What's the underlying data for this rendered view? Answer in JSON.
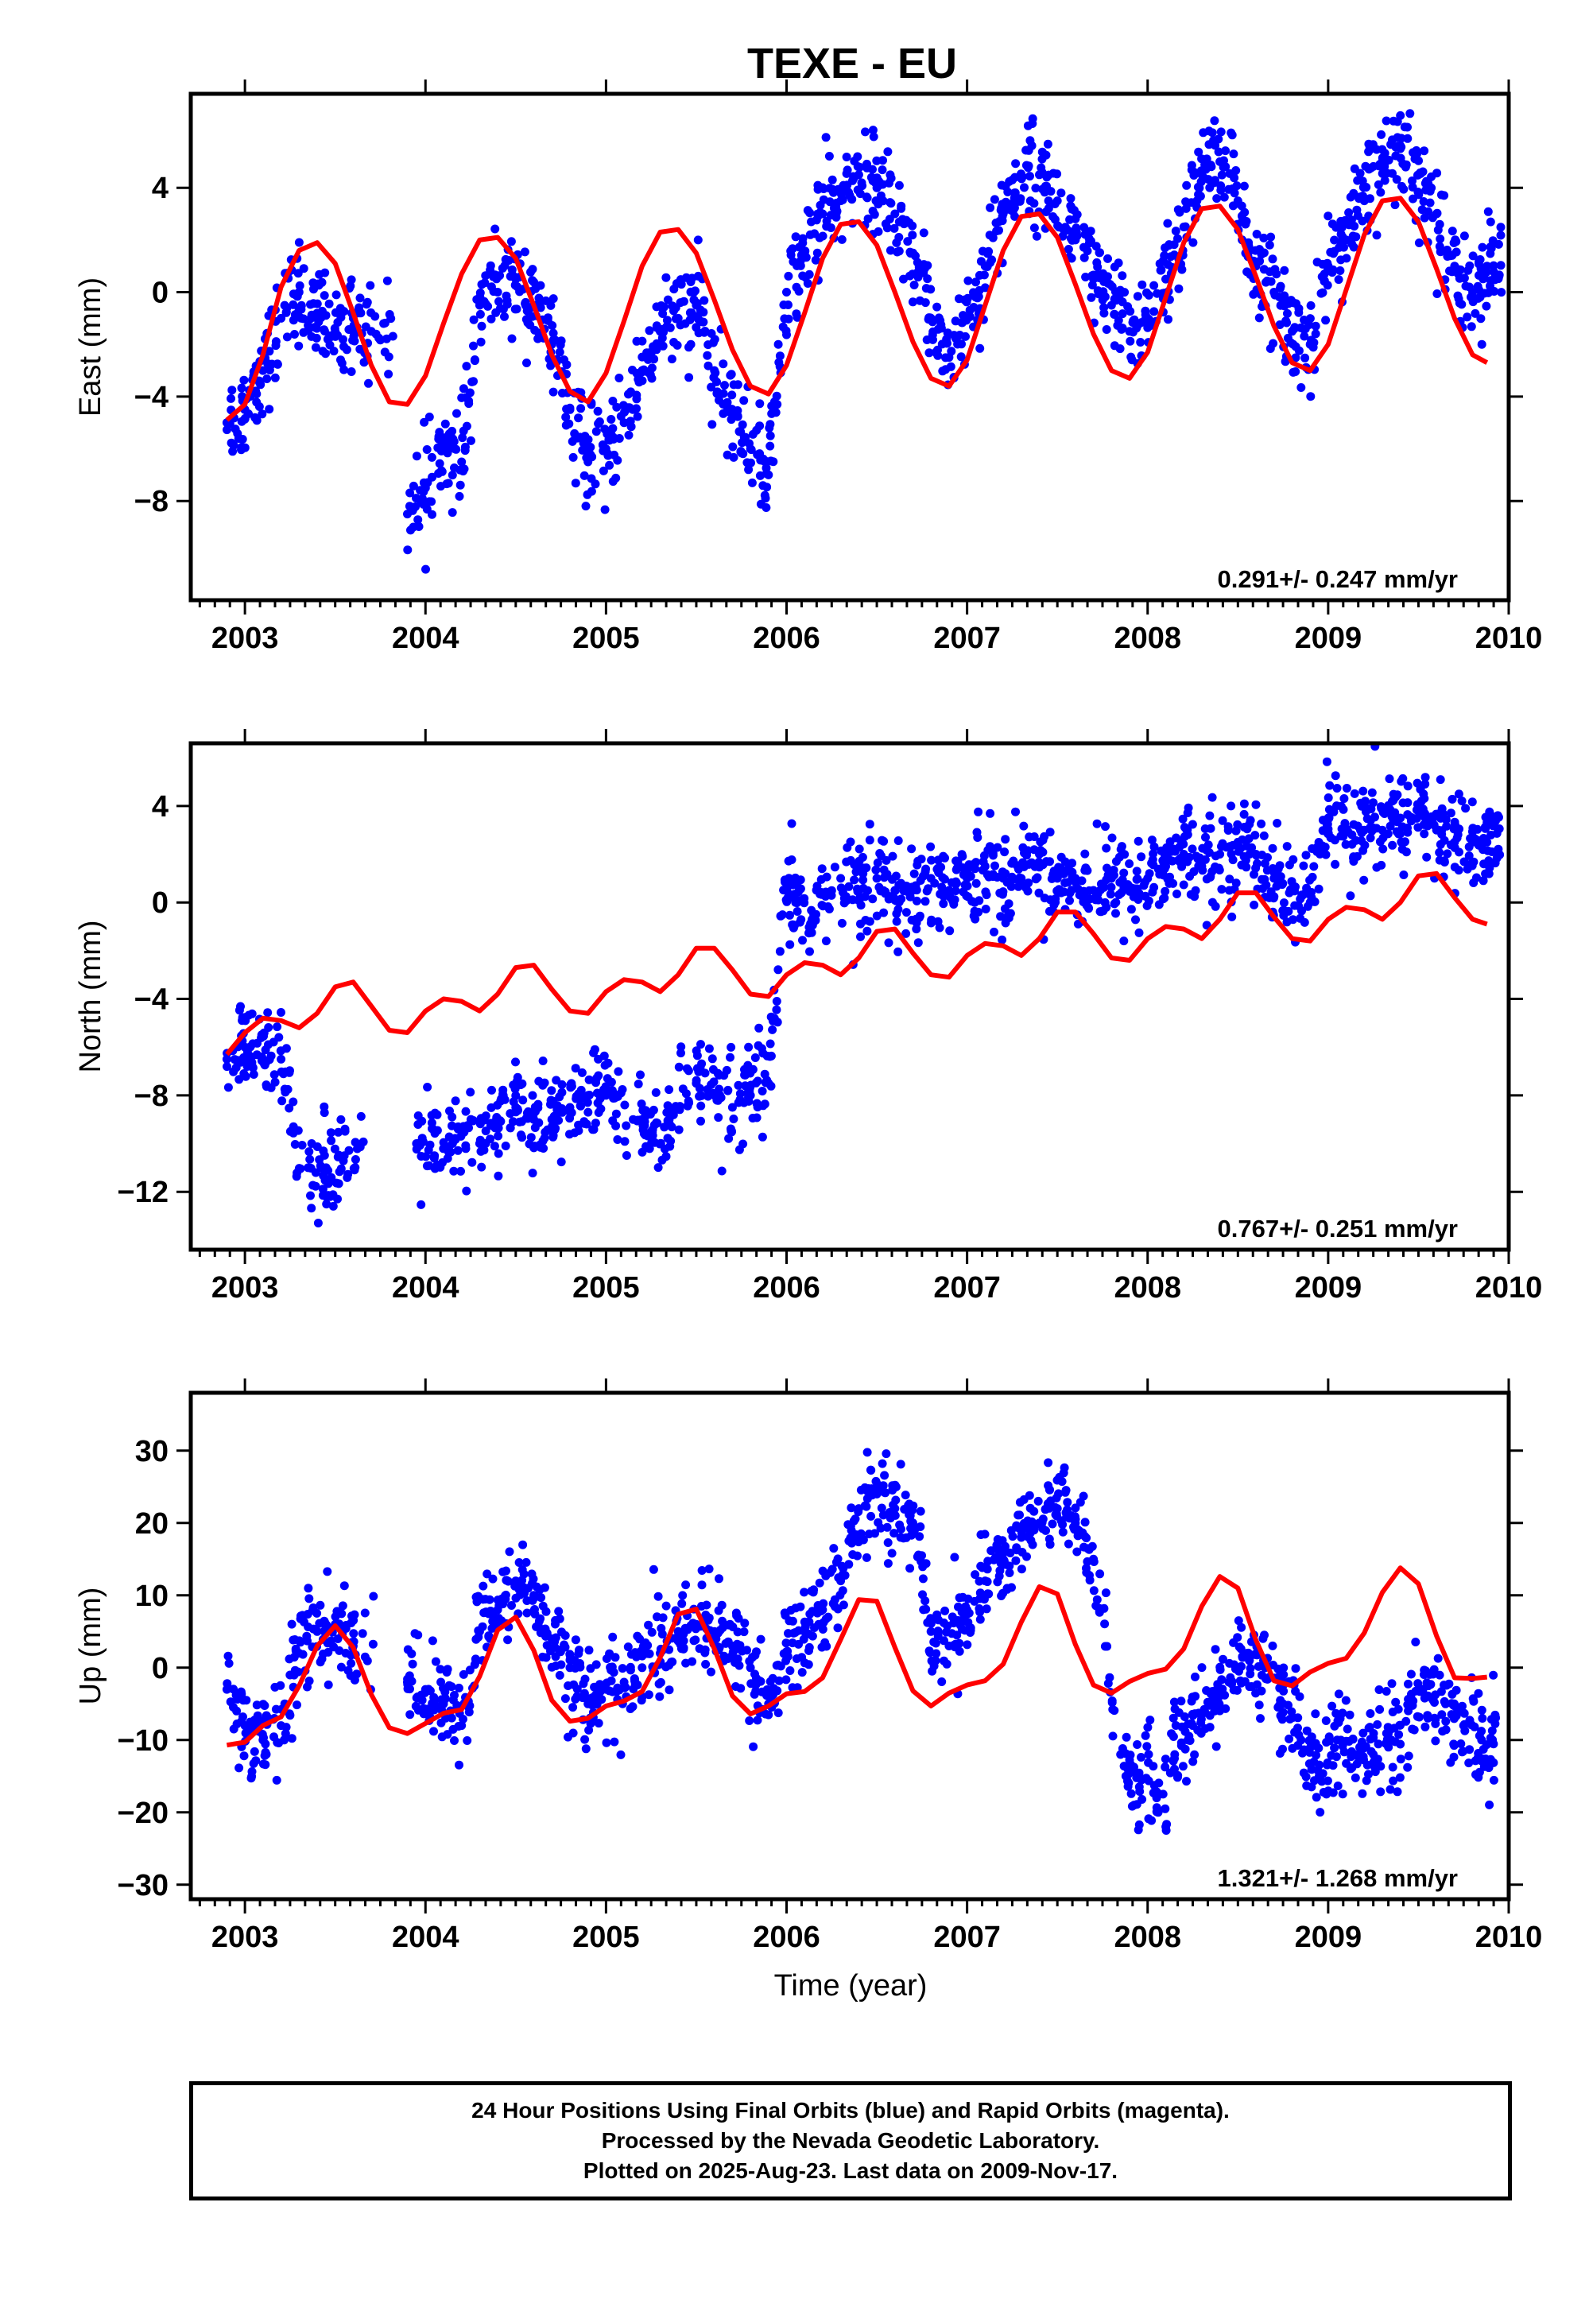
{
  "title": "TEXE - EU",
  "xlabel": "Time (year)",
  "footer": {
    "line1": "24 Hour Positions Using Final Orbits (blue) and Rapid Orbits (magenta).",
    "line2": "Processed by the Nevada Geodetic Laboratory.",
    "line3": "Plotted on 2025-Aug-23. Last data on 2009-Nov-17."
  },
  "colors": {
    "points": "#0000ff",
    "model": "#ff0000",
    "frame": "#000000"
  },
  "chart_data": [
    {
      "type": "scatter",
      "component": "East",
      "ylabel": "East (mm)",
      "xlim": [
        2002.7,
        2010.0
      ],
      "ylim": [
        -11.8,
        7.6
      ],
      "xticks": [
        2003,
        2004,
        2005,
        2006,
        2007,
        2008,
        2009,
        2010
      ],
      "yticks": [
        4,
        0,
        -4,
        -8
      ],
      "rate_label": "0.291+/- 0.247 mm/yr",
      "series": [
        {
          "kind": "observed",
          "x": [
            2002.9,
            2003.0,
            2003.1,
            2003.2,
            2003.3,
            2003.4,
            2003.5,
            2003.6,
            2003.7,
            2003.9,
            2004.0,
            2004.1,
            2004.2,
            2004.3,
            2004.4,
            2004.5,
            2004.6,
            2004.7,
            2004.8,
            2004.9,
            2005.0,
            2005.1,
            2005.2,
            2005.3,
            2005.4,
            2005.5,
            2005.6,
            2005.7,
            2005.8,
            2005.9,
            2006.0,
            2006.1,
            2006.2,
            2006.3,
            2006.4,
            2006.5,
            2006.6,
            2006.7,
            2006.8,
            2006.9,
            2007.0,
            2007.1,
            2007.2,
            2007.3,
            2007.4,
            2007.5,
            2007.6,
            2007.7,
            2007.8,
            2007.9,
            2008.0,
            2008.1,
            2008.2,
            2008.3,
            2008.4,
            2008.5,
            2008.6,
            2008.7,
            2008.8,
            2008.9,
            2009.0,
            2009.1,
            2009.2,
            2009.3,
            2009.4,
            2009.5,
            2009.6,
            2009.7,
            2009.8,
            2009.88
          ],
          "y": [
            -5.0,
            -4.5,
            -3.0,
            -1.0,
            0.0,
            -1.0,
            -1.5,
            -1.0,
            -1.5,
            -8.5,
            -7.5,
            -6.0,
            -6.5,
            -0.5,
            0.0,
            0.5,
            -0.5,
            -2.0,
            -4.5,
            -6.5,
            -6.0,
            -5.0,
            -3.0,
            -1.5,
            -1.0,
            -0.5,
            -3.0,
            -4.5,
            -6.0,
            -7.0,
            0.0,
            1.5,
            3.0,
            3.5,
            4.5,
            4.0,
            3.0,
            1.5,
            -1.0,
            -2.5,
            -1.0,
            1.0,
            3.0,
            4.5,
            4.5,
            3.5,
            2.0,
            0.5,
            -0.5,
            -1.5,
            -1.0,
            0.5,
            2.5,
            4.5,
            5.0,
            3.5,
            1.0,
            0.0,
            -1.5,
            -2.0,
            1.0,
            2.0,
            3.5,
            5.0,
            5.5,
            4.5,
            3.0,
            1.0,
            0.0,
            1.0
          ]
        },
        {
          "kind": "model",
          "x": [
            2002.9,
            2003.0,
            2003.1,
            2003.2,
            2003.3,
            2003.4,
            2003.5,
            2003.6,
            2003.7,
            2003.8,
            2003.9,
            2004.0,
            2004.1,
            2004.2,
            2004.3,
            2004.4,
            2004.5,
            2004.6,
            2004.7,
            2004.8,
            2004.9,
            2005.0,
            2005.1,
            2005.2,
            2005.3,
            2005.4,
            2005.5,
            2005.6,
            2005.7,
            2005.8,
            2005.9,
            2006.0,
            2006.1,
            2006.2,
            2006.3,
            2006.4,
            2006.5,
            2006.6,
            2006.7,
            2006.8,
            2006.9,
            2007.0,
            2007.1,
            2007.2,
            2007.3,
            2007.4,
            2007.5,
            2007.6,
            2007.7,
            2007.8,
            2007.9,
            2008.0,
            2008.1,
            2008.2,
            2008.3,
            2008.4,
            2008.5,
            2008.6,
            2008.7,
            2008.8,
            2008.9,
            2009.0,
            2009.1,
            2009.2,
            2009.3,
            2009.4,
            2009.5,
            2009.6,
            2009.7,
            2009.8,
            2009.88
          ],
          "y": [
            -4.9,
            -4.3,
            -2.4,
            0.2,
            1.6,
            1.9,
            1.1,
            -0.8,
            -2.8,
            -4.2,
            -4.3,
            -3.2,
            -1.2,
            0.7,
            2.0,
            2.1,
            1.3,
            -0.5,
            -2.4,
            -3.8,
            -4.2,
            -3.1,
            -1.1,
            1.0,
            2.3,
            2.4,
            1.5,
            -0.3,
            -2.2,
            -3.6,
            -3.9,
            -2.8,
            -0.8,
            1.3,
            2.6,
            2.7,
            1.8,
            0.0,
            -1.9,
            -3.3,
            -3.6,
            -2.6,
            -0.5,
            1.6,
            2.9,
            3.0,
            2.1,
            0.3,
            -1.6,
            -3.0,
            -3.3,
            -2.3,
            -0.2,
            1.9,
            3.2,
            3.3,
            2.4,
            0.6,
            -1.3,
            -2.7,
            -3.0,
            -2.0,
            0.1,
            2.2,
            3.5,
            3.6,
            2.7,
            0.9,
            -1.0,
            -2.4,
            -2.7
          ]
        }
      ]
    },
    {
      "type": "scatter",
      "component": "North",
      "ylabel": "North (mm)",
      "xlim": [
        2002.7,
        2010.0
      ],
      "ylim": [
        -14.4,
        6.6
      ],
      "xticks": [
        2003,
        2004,
        2005,
        2006,
        2007,
        2008,
        2009,
        2010
      ],
      "yticks": [
        4,
        0,
        -4,
        -8,
        -12
      ],
      "rate_label": "0.767+/- 0.251 mm/yr",
      "series": [
        {
          "kind": "observed",
          "x": [
            2002.9,
            2003.0,
            2003.1,
            2003.2,
            2003.35,
            2003.45,
            2003.55,
            2003.95,
            2004.05,
            2004.15,
            2004.3,
            2004.4,
            2004.5,
            2004.6,
            2004.7,
            2004.8,
            2004.9,
            2005.0,
            2005.15,
            2005.25,
            2005.35,
            2005.5,
            2005.6,
            2005.7,
            2005.8,
            2005.9,
            2006.0,
            2006.05,
            2006.15,
            2006.3,
            2006.4,
            2006.5,
            2006.6,
            2006.7,
            2006.8,
            2006.9,
            2007.0,
            2007.1,
            2007.2,
            2007.3,
            2007.4,
            2007.5,
            2007.6,
            2007.7,
            2007.8,
            2007.9,
            2008.0,
            2008.1,
            2008.2,
            2008.3,
            2008.4,
            2008.5,
            2008.6,
            2008.7,
            2008.8,
            2008.9,
            2009.0,
            2009.1,
            2009.2,
            2009.3,
            2009.4,
            2009.5,
            2009.6,
            2009.7,
            2009.8,
            2009.88
          ],
          "y": [
            -6.5,
            -6.0,
            -6.5,
            -6.5,
            -11.0,
            -11.0,
            -10.5,
            -10.0,
            -10.5,
            -10.0,
            -10.0,
            -9.0,
            -8.5,
            -9.0,
            -9.0,
            -8.5,
            -8.0,
            -8.0,
            -9.0,
            -9.5,
            -9.0,
            -7.5,
            -8.0,
            -8.5,
            -8.0,
            -7.5,
            0.5,
            0.0,
            -0.5,
            1.0,
            0.5,
            1.0,
            0.5,
            0.5,
            1.0,
            0.5,
            1.0,
            1.5,
            1.0,
            1.0,
            2.0,
            1.0,
            1.0,
            0.5,
            1.0,
            0.5,
            1.0,
            1.5,
            2.0,
            1.5,
            2.0,
            2.5,
            2.0,
            1.0,
            0.5,
            0.0,
            3.5,
            3.0,
            3.0,
            3.0,
            3.5,
            4.0,
            3.0,
            2.5,
            2.5,
            2.5
          ]
        },
        {
          "kind": "model",
          "x": [
            2002.9,
            2003.0,
            2003.1,
            2003.2,
            2003.3,
            2003.4,
            2003.5,
            2003.6,
            2003.7,
            2003.8,
            2003.9,
            2004.0,
            2004.1,
            2004.2,
            2004.3,
            2004.4,
            2004.5,
            2004.6,
            2004.7,
            2004.8,
            2004.9,
            2005.0,
            2005.1,
            2005.2,
            2005.3,
            2005.4,
            2005.5,
            2005.6,
            2005.7,
            2005.8,
            2005.9,
            2006.0,
            2006.1,
            2006.2,
            2006.3,
            2006.4,
            2006.5,
            2006.6,
            2006.7,
            2006.8,
            2006.9,
            2007.0,
            2007.1,
            2007.2,
            2007.3,
            2007.4,
            2007.5,
            2007.6,
            2007.7,
            2007.8,
            2007.9,
            2008.0,
            2008.1,
            2008.2,
            2008.3,
            2008.4,
            2008.5,
            2008.6,
            2008.7,
            2008.8,
            2008.9,
            2009.0,
            2009.1,
            2009.2,
            2009.3,
            2009.4,
            2009.5,
            2009.6,
            2009.7,
            2009.8,
            2009.88
          ],
          "y": [
            -6.3,
            -5.4,
            -4.8,
            -4.9,
            -5.2,
            -4.6,
            -3.5,
            -3.3,
            -4.3,
            -5.3,
            -5.4,
            -4.5,
            -4.0,
            -4.1,
            -4.5,
            -3.8,
            -2.7,
            -2.6,
            -3.6,
            -4.5,
            -4.6,
            -3.7,
            -3.2,
            -3.3,
            -3.7,
            -3.0,
            -1.9,
            -1.9,
            -2.8,
            -3.8,
            -3.9,
            -3.0,
            -2.5,
            -2.6,
            -3.0,
            -2.3,
            -1.2,
            -1.1,
            -2.1,
            -3.0,
            -3.1,
            -2.2,
            -1.7,
            -1.8,
            -2.2,
            -1.5,
            -0.4,
            -0.4,
            -1.3,
            -2.3,
            -2.4,
            -1.5,
            -1.0,
            -1.1,
            -1.5,
            -0.7,
            0.4,
            0.4,
            -0.6,
            -1.5,
            -1.6,
            -0.7,
            -0.2,
            -0.3,
            -0.7,
            0.0,
            1.1,
            1.2,
            0.2,
            -0.7,
            -0.9
          ]
        }
      ]
    },
    {
      "type": "scatter",
      "component": "Up",
      "ylabel": "Up (mm)",
      "xlim": [
        2002.7,
        2010.0
      ],
      "ylim": [
        -32,
        38
      ],
      "xticks": [
        2003,
        2004,
        2005,
        2006,
        2007,
        2008,
        2009,
        2010
      ],
      "yticks": [
        30,
        20,
        10,
        0,
        -10,
        -20,
        -30
      ],
      "rate_label": "1.321+/- 1.268 mm/yr",
      "series": [
        {
          "kind": "observed",
          "x": [
            2002.9,
            2003.0,
            2003.1,
            2003.2,
            2003.3,
            2003.4,
            2003.5,
            2003.6,
            2003.9,
            2004.0,
            2004.1,
            2004.2,
            2004.3,
            2004.4,
            2004.5,
            2004.6,
            2004.7,
            2004.8,
            2004.9,
            2005.0,
            2005.1,
            2005.2,
            2005.3,
            2005.4,
            2005.5,
            2005.6,
            2005.7,
            2005.8,
            2005.9,
            2006.0,
            2006.1,
            2006.2,
            2006.3,
            2006.4,
            2006.5,
            2006.6,
            2006.7,
            2006.8,
            2006.9,
            2007.0,
            2007.1,
            2007.2,
            2007.3,
            2007.4,
            2007.5,
            2007.6,
            2007.7,
            2007.85,
            2007.95,
            2008.05,
            2008.15,
            2008.25,
            2008.35,
            2008.45,
            2008.55,
            2008.65,
            2008.75,
            2008.85,
            2008.95,
            2009.05,
            2009.15,
            2009.25,
            2009.35,
            2009.45,
            2009.55,
            2009.65,
            2009.75,
            2009.85
          ],
          "y": [
            -3,
            -8,
            -10,
            -8,
            2,
            5,
            6,
            3,
            -2,
            -3,
            -5,
            -8,
            5,
            8,
            12,
            10,
            4,
            0,
            -5,
            -3,
            -2,
            0,
            2,
            5,
            6,
            5,
            3,
            0,
            -5,
            2,
            5,
            8,
            12,
            22,
            24,
            22,
            20,
            5,
            3,
            8,
            12,
            15,
            18,
            20,
            22,
            20,
            15,
            -12,
            -15,
            -18,
            -12,
            -8,
            -5,
            -2,
            2,
            0,
            -5,
            -10,
            -15,
            -10,
            -12,
            -12,
            -10,
            -5,
            -4,
            -5,
            -8,
            -10
          ]
        },
        {
          "kind": "model",
          "x": [
            2002.9,
            2003.0,
            2003.1,
            2003.2,
            2003.3,
            2003.4,
            2003.5,
            2003.6,
            2003.7,
            2003.8,
            2003.9,
            2004.0,
            2004.1,
            2004.2,
            2004.3,
            2004.4,
            2004.5,
            2004.6,
            2004.7,
            2004.8,
            2004.9,
            2005.0,
            2005.1,
            2005.2,
            2005.3,
            2005.4,
            2005.5,
            2005.6,
            2005.7,
            2005.8,
            2005.9,
            2006.0,
            2006.1,
            2006.2,
            2006.3,
            2006.4,
            2006.5,
            2006.6,
            2006.7,
            2006.8,
            2006.9,
            2007.0,
            2007.1,
            2007.2,
            2007.3,
            2007.4,
            2007.5,
            2007.6,
            2007.7,
            2007.8,
            2007.9,
            2008.0,
            2008.1,
            2008.2,
            2008.3,
            2008.4,
            2008.5,
            2008.6,
            2008.7,
            2008.8,
            2008.9,
            2009.0,
            2009.1,
            2009.2,
            2009.3,
            2009.4,
            2009.5,
            2009.6,
            2009.7,
            2009.8,
            2009.88
          ],
          "y": [
            -10.7,
            -10.3,
            -8.0,
            -6.8,
            -2.5,
            3.0,
            5.8,
            2.8,
            -3.7,
            -8.3,
            -9.1,
            -7.7,
            -6.3,
            -5.8,
            -1.2,
            5.2,
            7.0,
            2.4,
            -4.5,
            -7.4,
            -7.0,
            -5.3,
            -4.6,
            -3.3,
            1.4,
            7.4,
            8.1,
            2.6,
            -3.9,
            -6.4,
            -5.3,
            -3.6,
            -3.3,
            -1.4,
            3.9,
            9.4,
            9.2,
            2.8,
            -3.2,
            -5.3,
            -3.5,
            -2.4,
            -1.8,
            0.5,
            6.3,
            11.2,
            10.2,
            3.2,
            -2.4,
            -3.5,
            -1.9,
            -0.8,
            -0.2,
            2.6,
            8.5,
            12.6,
            11.0,
            3.8,
            -1.8,
            -2.5,
            -0.6,
            0.6,
            1.3,
            4.8,
            10.4,
            13.8,
            11.6,
            4.4,
            -1.4,
            -1.5,
            -1.3
          ]
        }
      ]
    }
  ]
}
